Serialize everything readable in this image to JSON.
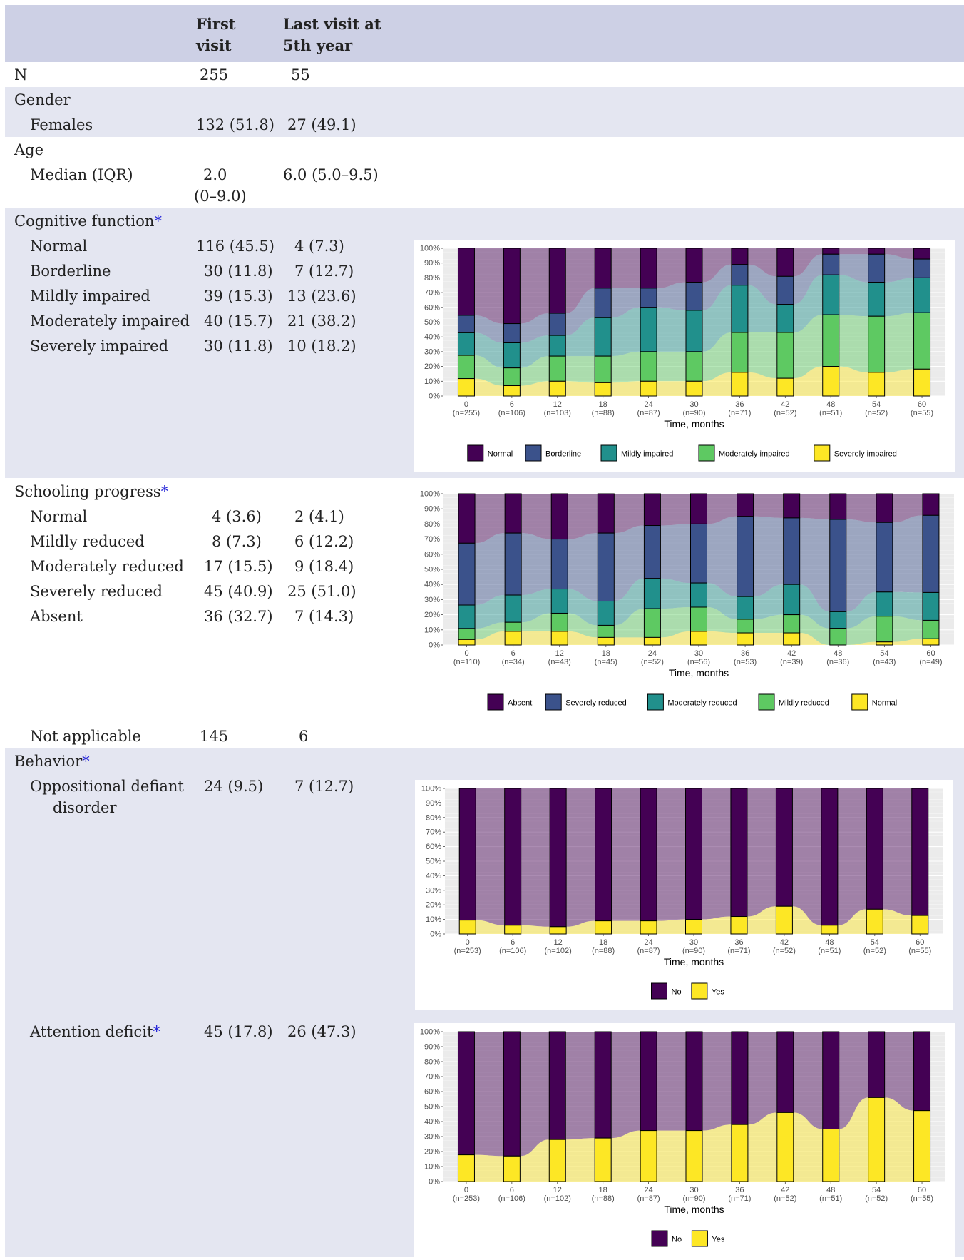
{
  "table": {
    "col_first": [
      "First",
      "visit"
    ],
    "col_last": [
      "Last visit at",
      "5th year"
    ],
    "n": {
      "label": "N",
      "first": "255",
      "last": "55"
    },
    "gender": {
      "label": "Gender",
      "females": {
        "label": "Females",
        "first": "132 (51.8)",
        "last": "27 (49.1)"
      }
    },
    "age": {
      "label": "Age",
      "median": {
        "label": "Median (IQR)",
        "first": [
          "2.0",
          "(0–9.0)"
        ],
        "last": "6.0 (5.0–9.5)"
      }
    },
    "cognitive": {
      "label": "Cognitive function",
      "rows": [
        {
          "label": "Normal",
          "first": "116 (45.5)",
          "last": "4 (7.3)"
        },
        {
          "label": "Borderline",
          "first": "30 (11.8)",
          "last": "7 (12.7)"
        },
        {
          "label": "Mildly impaired",
          "first": "39 (15.3)",
          "last": "13 (23.6)"
        },
        {
          "label": "Moderately impaired",
          "first": "40 (15.7)",
          "last": "21 (38.2)"
        },
        {
          "label": "Severely impaired",
          "first": "30 (11.8)",
          "last": "10 (18.2)"
        }
      ]
    },
    "schooling": {
      "label": "Schooling progress",
      "rows": [
        {
          "label": "Normal",
          "first": "4 (3.6)",
          "last": "2 (4.1)"
        },
        {
          "label": "Mildly reduced",
          "first": "8 (7.3)",
          "last": "6 (12.2)"
        },
        {
          "label": "Moderately reduced",
          "first": "17 (15.5)",
          "last": "9 (18.4)"
        },
        {
          "label": "Severely reduced",
          "first": "45 (40.9)",
          "last": "25 (51.0)"
        },
        {
          "label": "Absent",
          "first": "36 (32.7)",
          "last": "7 (14.3)"
        }
      ],
      "na": {
        "label": "Not applicable",
        "first": "145",
        "last": "6"
      }
    },
    "behavior": {
      "label": "Behavior",
      "odd": {
        "label": [
          "Oppositional defiant",
          "disorder"
        ],
        "first": "24 (9.5)",
        "last": "7 (12.7)"
      },
      "attention": {
        "label": "Attention deficit",
        "first": "45 (17.8)",
        "last": "26 (47.3)"
      }
    },
    "asterisk": "*"
  },
  "chart_data": [
    {
      "type": "alluvial",
      "xlabel": "Time, months",
      "ylabel": "",
      "ylim": [
        0,
        100
      ],
      "y_ticks": [
        "0%",
        "10%",
        "20%",
        "30%",
        "40%",
        "50%",
        "60%",
        "70%",
        "80%",
        "90%",
        "100%"
      ],
      "x": [
        "0",
        "6",
        "12",
        "18",
        "24",
        "30",
        "36",
        "42",
        "48",
        "54",
        "60"
      ],
      "n_labels": [
        "(n=255)",
        "(n=106)",
        "(n=103)",
        "(n=88)",
        "(n=87)",
        "(n=90)",
        "(n=71)",
        "(n=52)",
        "(n=51)",
        "(n=52)",
        "(n=55)"
      ],
      "legend_position": "bottom",
      "grid": true,
      "series": [
        {
          "name": "Normal",
          "color": "#440154",
          "values": [
            45.5,
            51,
            44,
            27,
            27,
            23,
            11,
            19,
            4,
            4,
            7.3
          ]
        },
        {
          "name": "Borderline",
          "color": "#3b528b",
          "values": [
            11.8,
            13,
            15,
            20,
            13,
            19,
            14,
            19,
            14,
            19,
            12.7
          ]
        },
        {
          "name": "Mildly impaired",
          "color": "#21908c",
          "values": [
            15.3,
            17,
            14,
            26,
            30,
            28,
            32,
            19,
            27,
            23,
            23.6
          ]
        },
        {
          "name": "Moderately impaired",
          "color": "#5ec962",
          "values": [
            15.7,
            12,
            17,
            18,
            20,
            20,
            27,
            31,
            35,
            38,
            38.2
          ]
        },
        {
          "name": "Severely impaired",
          "color": "#fde725",
          "values": [
            11.8,
            7,
            10,
            9,
            10,
            10,
            16,
            12,
            20,
            16,
            18.2
          ]
        }
      ]
    },
    {
      "type": "alluvial",
      "xlabel": "Time, months",
      "ylabel": "",
      "ylim": [
        0,
        100
      ],
      "y_ticks": [
        "0%",
        "10%",
        "20%",
        "30%",
        "40%",
        "50%",
        "60%",
        "70%",
        "80%",
        "90%",
        "100%"
      ],
      "x": [
        "0",
        "6",
        "12",
        "18",
        "24",
        "30",
        "36",
        "42",
        "48",
        "54",
        "60"
      ],
      "n_labels": [
        "(n=110)",
        "(n=34)",
        "(n=43)",
        "(n=45)",
        "(n=52)",
        "(n=56)",
        "(n=53)",
        "(n=39)",
        "(n=36)",
        "(n=43)",
        "(n=49)"
      ],
      "legend_position": "bottom",
      "grid": true,
      "series": [
        {
          "name": "Absent",
          "color": "#440154",
          "values": [
            32.7,
            26,
            30,
            26,
            21,
            20,
            15,
            16,
            17,
            19,
            14.3
          ]
        },
        {
          "name": "Severely reduced",
          "color": "#3b528b",
          "values": [
            40.9,
            41,
            33,
            45,
            35,
            39,
            53,
            44,
            61,
            46,
            51
          ]
        },
        {
          "name": "Moderately reduced",
          "color": "#21908c",
          "values": [
            15.5,
            18,
            16,
            16,
            20,
            16,
            15,
            20,
            11,
            16,
            18.4
          ]
        },
        {
          "name": "Mildly reduced",
          "color": "#5ec962",
          "values": [
            7.3,
            6,
            12,
            8,
            19,
            16,
            9,
            12,
            11,
            17,
            12.2
          ]
        },
        {
          "name": "Normal",
          "color": "#fde725",
          "values": [
            3.6,
            9,
            9,
            5,
            5,
            9,
            8,
            8,
            0,
            2,
            4.1
          ]
        }
      ]
    },
    {
      "type": "alluvial",
      "xlabel": "Time, months",
      "ylabel": "",
      "ylim": [
        0,
        100
      ],
      "y_ticks": [
        "0%",
        "10%",
        "20%",
        "30%",
        "40%",
        "50%",
        "60%",
        "70%",
        "80%",
        "90%",
        "100%"
      ],
      "x": [
        "0",
        "6",
        "12",
        "18",
        "24",
        "30",
        "36",
        "42",
        "48",
        "54",
        "60"
      ],
      "n_labels": [
        "(n=253)",
        "(n=106)",
        "(n=102)",
        "(n=88)",
        "(n=87)",
        "(n=90)",
        "(n=71)",
        "(n=52)",
        "(n=51)",
        "(n=52)",
        "(n=55)"
      ],
      "legend_position": "bottom",
      "grid": true,
      "series": [
        {
          "name": "No",
          "color": "#440154",
          "values": [
            90.5,
            94,
            95,
            91,
            91,
            90,
            88,
            81,
            94,
            83,
            87.3
          ]
        },
        {
          "name": "Yes",
          "color": "#fde725",
          "values": [
            9.5,
            6,
            5,
            9,
            9,
            10,
            12,
            19,
            6,
            17,
            12.7
          ]
        }
      ]
    },
    {
      "type": "alluvial",
      "xlabel": "Time, months",
      "ylabel": "",
      "ylim": [
        0,
        100
      ],
      "y_ticks": [
        "0%",
        "10%",
        "20%",
        "30%",
        "40%",
        "50%",
        "60%",
        "70%",
        "80%",
        "90%",
        "100%"
      ],
      "x": [
        "0",
        "6",
        "12",
        "18",
        "24",
        "30",
        "36",
        "42",
        "48",
        "54",
        "60"
      ],
      "n_labels": [
        "(n=253)",
        "(n=106)",
        "(n=102)",
        "(n=88)",
        "(n=87)",
        "(n=90)",
        "(n=71)",
        "(n=52)",
        "(n=51)",
        "(n=52)",
        "(n=55)"
      ],
      "legend_position": "bottom",
      "grid": true,
      "series": [
        {
          "name": "No",
          "color": "#440154",
          "values": [
            82.2,
            83,
            72,
            71,
            66,
            66,
            62,
            54,
            65,
            44,
            52.7
          ]
        },
        {
          "name": "Yes",
          "color": "#fde725",
          "values": [
            17.8,
            17,
            28,
            29,
            34,
            34,
            38,
            46,
            35,
            56,
            47.3
          ]
        }
      ]
    }
  ]
}
